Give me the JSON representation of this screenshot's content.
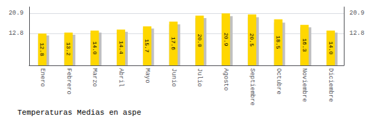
{
  "chart_data": {
    "type": "bar",
    "title": "Temperaturas Medias en aspe",
    "categories": [
      "Enero",
      "Febrero",
      "Marzo",
      "Abril",
      "Mayo",
      "Junio",
      "Julio",
      "Agosto",
      "Septiembre",
      "Octubre",
      "Noviembre",
      "Diciembre"
    ],
    "series": [
      {
        "color": "#C0C0C0",
        "values": [
          12.0,
          12.3,
          13.2,
          13.5,
          14.8,
          16.5,
          19.0,
          19.8,
          19.4,
          17.2,
          15.3,
          13.2
        ]
      },
      {
        "color": "#FFD700",
        "values": [
          12.8,
          13.2,
          14.0,
          14.4,
          15.7,
          17.6,
          20.0,
          20.9,
          20.5,
          18.5,
          16.3,
          14.0
        ],
        "data_labels": true,
        "value_labels": [
          "12.8",
          "13.2",
          "14.0",
          "14.4",
          "15.7",
          "17.6",
          "20.0",
          "20.9",
          "20.5",
          "18.5",
          "16.3",
          "14.0"
        ]
      }
    ],
    "ylim": [
      0,
      23.5
    ],
    "yticks": [
      12.8,
      20.9
    ],
    "y2lim": [
      0,
      23.5
    ],
    "y2ticks": [
      12.8,
      20.9
    ],
    "grid": true
  }
}
